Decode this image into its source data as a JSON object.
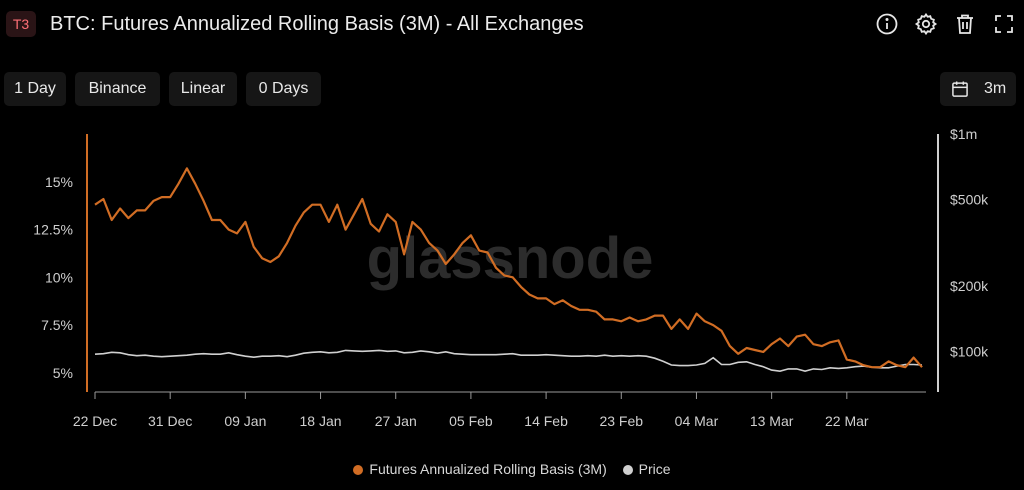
{
  "header": {
    "badge": "T3",
    "title": "BTC: Futures Annualized Rolling Basis (3M) - All Exchanges",
    "icons": [
      "info-icon",
      "gear-icon",
      "trash-icon",
      "expand-icon"
    ]
  },
  "toolbar": {
    "resolution": "1 Day",
    "exchange": "Binance",
    "scale": "Linear",
    "smoothing": "0 Days",
    "range": "3m",
    "range_icon": "calendar-icon"
  },
  "watermark": "glassnode",
  "colors": {
    "basis": "#d16d24",
    "price": "#d0d0d0",
    "accent": "#ff6f77",
    "axis": "#9a9a9a"
  },
  "chart_data": {
    "type": "line",
    "x_ticks": [
      "22 Dec",
      "31 Dec",
      "09 Jan",
      "18 Jan",
      "27 Jan",
      "05 Feb",
      "14 Feb",
      "23 Feb",
      "04 Mar",
      "13 Mar",
      "22 Mar"
    ],
    "x_start": "22 Dec",
    "x_end": "25 Mar",
    "y_left": {
      "ticks": [
        "5%",
        "7.5%",
        "10%",
        "12.5%",
        "15%"
      ],
      "tick_values": [
        5,
        7.5,
        10,
        12.5,
        15
      ],
      "range": [
        4,
        17.5
      ],
      "unit": "%"
    },
    "y_right": {
      "ticks": [
        "$100k",
        "$200k",
        "$500k",
        "$1m"
      ],
      "tick_values": [
        100000,
        200000,
        500000,
        1000000
      ],
      "range": [
        65000,
        1000000
      ],
      "scale": "log"
    },
    "grid": false,
    "legend_position": "bottom-center",
    "series": [
      {
        "name": "Futures Annualized Rolling Basis (3M)",
        "axis": "left",
        "values": [
          13.8,
          14.1,
          13.0,
          13.6,
          13.1,
          13.5,
          13.5,
          14.0,
          14.2,
          14.2,
          14.9,
          15.7,
          14.9,
          14.0,
          13.0,
          13.0,
          12.5,
          12.3,
          12.9,
          11.6,
          11.0,
          10.8,
          11.1,
          11.8,
          12.7,
          13.4,
          13.8,
          13.8,
          12.9,
          13.8,
          12.5,
          13.3,
          14.1,
          12.8,
          12.4,
          13.3,
          12.9,
          11.2,
          12.9,
          12.5,
          11.8,
          11.4,
          10.7,
          11.2,
          11.8,
          12.2,
          11.4,
          11.3,
          10.5,
          10.1,
          10.0,
          9.5,
          9.1,
          8.9,
          8.9,
          8.6,
          8.8,
          8.5,
          8.3,
          8.3,
          8.2,
          7.8,
          7.8,
          7.7,
          7.9,
          7.7,
          7.8,
          8.0,
          8.0,
          7.3,
          7.8,
          7.3,
          8.1,
          7.7,
          7.5,
          7.2,
          6.4,
          6.0,
          6.3,
          6.2,
          6.1,
          6.5,
          6.8,
          6.4,
          6.9,
          7.0,
          6.5,
          6.4,
          6.6,
          6.7,
          5.7,
          5.6,
          5.4,
          5.3,
          5.3,
          5.6,
          5.4,
          5.3,
          5.8,
          5.3
        ]
      },
      {
        "name": "Price",
        "axis": "right",
        "values": [
          97000,
          97500,
          99000,
          98500,
          96500,
          95500,
          96000,
          95000,
          94500,
          95000,
          95500,
          96000,
          97000,
          97500,
          97000,
          97000,
          98500,
          96500,
          95000,
          94000,
          95000,
          95000,
          95500,
          94500,
          96000,
          98000,
          99000,
          99500,
          98500,
          99000,
          101000,
          100500,
          100000,
          100500,
          101000,
          100000,
          100500,
          98500,
          99000,
          100500,
          99500,
          98000,
          99500,
          97500,
          97000,
          96500,
          96500,
          96500,
          96500,
          97000,
          97500,
          96000,
          96000,
          96000,
          96500,
          96000,
          95500,
          95000,
          95000,
          95500,
          95000,
          96000,
          95000,
          95500,
          95000,
          95500,
          95000,
          93000,
          90000,
          86500,
          86000,
          86000,
          86500,
          88000,
          93500,
          87000,
          87000,
          89000,
          89500,
          87000,
          85000,
          82000,
          81000,
          83000,
          83000,
          81000,
          83000,
          82500,
          84000,
          83500,
          84000,
          85000,
          85500,
          84500,
          84000,
          84000,
          85500,
          87000,
          87000,
          86500
        ]
      }
    ]
  }
}
